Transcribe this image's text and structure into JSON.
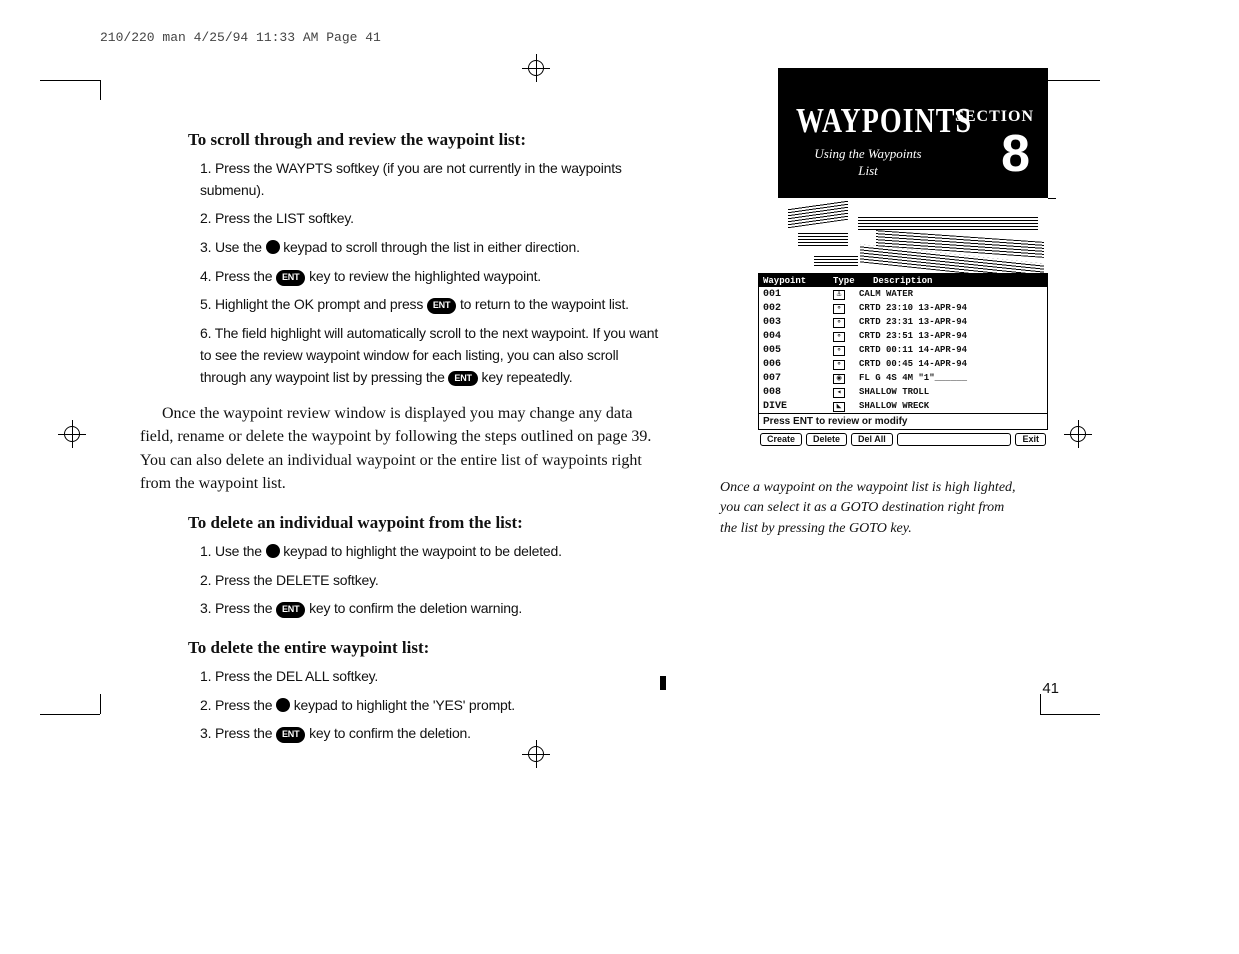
{
  "header": "210/220 man  4/25/94 11:33 AM  Page 41",
  "page_number": "41",
  "subheads": {
    "scroll": "To scroll through and review the waypoint list:",
    "delete_one": "To delete an individual waypoint from the list:",
    "delete_all": "To delete the entire waypoint list:"
  },
  "steps_scroll": [
    "Press the WAYPTS softkey (if you are not currently in the waypoints submenu).",
    "Press the LIST softkey.",
    "Use the __CIRCLE__ keypad to scroll through the list in either direction.",
    "Press the __ENT__ key to review the highlighted waypoint.",
    "Highlight the OK prompt and press __ENT__ to return to the waypoint list.",
    "The field highlight will automatically scroll to the next waypoint. If you want to see the review waypoint window for each listing, you can also scroll through any waypoint list by pressing the __ENT__ key repeatedly."
  ],
  "body_para": "Once the waypoint review window is displayed you may change any data field, rename or delete the waypoint by following the steps outlined on page 39. You can also delete an individual waypoint or the entire list of waypoints right from the waypoint list.",
  "steps_delete_one": [
    "Use the __CIRCLE__ keypad to highlight the waypoint to be deleted.",
    "Press the DELETE softkey.",
    "Press the __ENT__ key to confirm the deletion warning."
  ],
  "steps_delete_all": [
    "Press the DEL ALL softkey.",
    "Press the __CIRCLE__ keypad to highlight the 'YES' prompt.",
    "Press the __ENT__ key to confirm the deletion."
  ],
  "section_box": {
    "title": "WAYPOINTS",
    "subtitle": "Using the Waypoints List",
    "section_label": "SECTION",
    "section_number": "8"
  },
  "table": {
    "heads": {
      "c1": "Waypoint",
      "c2": "Type",
      "c3": "Description"
    },
    "rows": [
      {
        "wp": "001",
        "icon": "⚓",
        "desc": "CALM WATER"
      },
      {
        "wp": "002",
        "icon": "∘",
        "desc": "CRTD 23:10 13-APR-94"
      },
      {
        "wp": "003",
        "icon": "∘",
        "desc": "CRTD 23:31 13-APR-94"
      },
      {
        "wp": "004",
        "icon": "∘",
        "desc": "CRTD 23:51 13-APR-94"
      },
      {
        "wp": "005",
        "icon": "∘",
        "desc": "CRTD 00:11 14-APR-94"
      },
      {
        "wp": "006",
        "icon": "∘",
        "desc": "CRTD 00:45 14-APR-94"
      },
      {
        "wp": "007",
        "icon": "◉",
        "desc": "FL G 4S 4M \"1\"______"
      },
      {
        "wp": "008",
        "icon": "◂",
        "desc": "SHALLOW TROLL"
      },
      {
        "wp": "DIVE",
        "icon": "◣",
        "desc": "SHALLOW WRECK"
      }
    ],
    "instruction": "Press ENT to review or modify",
    "softkeys": [
      "Create",
      "Delete",
      "Del All",
      "",
      "Exit"
    ]
  },
  "caption": "Once a waypoint on the waypoint list is high lighted, you can select it as a GOTO destination right from the list by pressing the GOTO key.",
  "key_labels": {
    "ent": "ENT"
  },
  "colors": {
    "text": "#111111",
    "bg": "#ffffff",
    "black": "#000000"
  }
}
